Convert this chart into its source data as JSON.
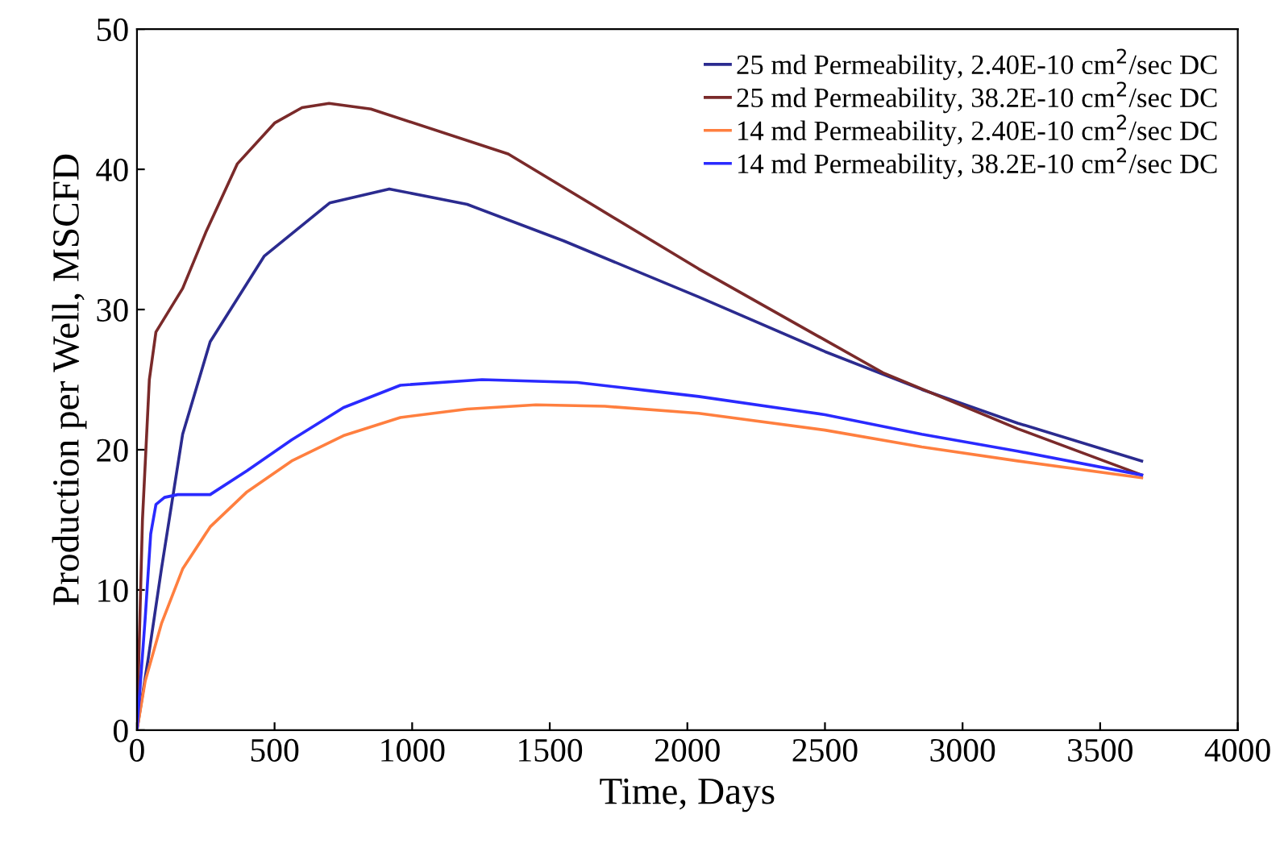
{
  "chart_data": {
    "type": "line",
    "xlabel": "Time, Days",
    "ylabel": "Production per Well, MSCFD",
    "xlim": [
      0,
      4000
    ],
    "xticks": [
      0,
      500,
      1000,
      1500,
      2000,
      2500,
      3000,
      3500,
      4000
    ],
    "ylim": [
      0,
      50
    ],
    "yticks": [
      0,
      10,
      20,
      30,
      40,
      50
    ],
    "grid": false,
    "legend": "top right",
    "marker": "none",
    "line_style": "solid",
    "series": [
      {
        "name": "25 md Permeability, 2.40E-10 cm$^{2}$/sec DC",
        "color": "#2b2b8f",
        "x": [
          0,
          40,
          89,
          166,
          266,
          462,
          700,
          917,
          1200,
          1550,
          2041,
          2500,
          2852,
          3200,
          3651
        ],
        "values": [
          0,
          5,
          11.5,
          21.1,
          27.7,
          33.8,
          37.6,
          38.6,
          37.5,
          34.9,
          30.9,
          27.0,
          24.3,
          21.9,
          19.2
        ]
      },
      {
        "name": "25 md Permeability, 38.2E-10 cm$^{2}$/sec DC",
        "color": "#7a2a2a",
        "x": [
          0,
          20,
          45,
          69,
          166,
          250,
          365,
          500,
          600,
          698,
          850,
          1349,
          2041,
          2710,
          3200,
          3651
        ],
        "values": [
          0,
          15,
          25,
          28.4,
          31.5,
          35.5,
          40.4,
          43.3,
          44.4,
          44.7,
          44.3,
          41.1,
          32.9,
          25.5,
          21.5,
          18.2
        ]
      },
      {
        "name": "14 md Permeability, 2.40E-10 cm$^{2}$/sec DC",
        "color": "#ff7f3f",
        "x": [
          0,
          30,
          89,
          166,
          266,
          400,
          562,
          750,
          957,
          1200,
          1450,
          1700,
          2041,
          2500,
          2852,
          3200,
          3651
        ],
        "values": [
          0,
          3.5,
          7.6,
          11.5,
          14.5,
          17.0,
          19.2,
          21.0,
          22.3,
          22.9,
          23.2,
          23.1,
          22.6,
          21.4,
          20.2,
          19.2,
          18.0
        ]
      },
      {
        "name": "14 md Permeability, 38.2E-10 cm$^{2}$/sec DC",
        "color": "#2a2aff",
        "x": [
          0,
          30,
          50,
          69,
          100,
          148,
          266,
          400,
          562,
          750,
          957,
          1254,
          1600,
          1864,
          2041,
          2500,
          2852,
          3200,
          3651
        ],
        "values": [
          0,
          8,
          14,
          16.1,
          16.6,
          16.8,
          16.8,
          18.5,
          20.7,
          23.0,
          24.6,
          25.0,
          24.8,
          24.2,
          23.8,
          22.5,
          21.1,
          19.9,
          18.2
        ]
      }
    ]
  }
}
